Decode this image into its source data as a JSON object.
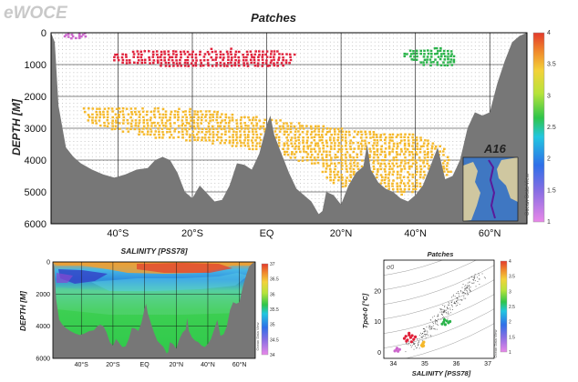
{
  "logo_text": "eWOCE",
  "colors": {
    "background": "#ffffff",
    "bathymetry": "#777777",
    "patch_red": "#e0213a",
    "patch_yellow": "#f5b82a",
    "patch_green": "#2ab34a",
    "patch_magenta": "#cc66cc",
    "sample_dots": "#444444"
  },
  "chart_data": [
    {
      "type": "scatter",
      "title": "Patches",
      "ylabel": "DEPTH [M]",
      "xlim": [
        -58,
        70
      ],
      "ylim": [
        6000,
        0
      ],
      "x_ticks": [
        -40,
        -20,
        0,
        20,
        40,
        60
      ],
      "x_tick_labels": [
        "40°S",
        "20°S",
        "EQ",
        "20°N",
        "40°N",
        "60°N"
      ],
      "y_ticks": [
        0,
        1000,
        2000,
        3000,
        4000,
        5000,
        6000
      ],
      "y_tick_labels": [
        "0",
        "1000",
        "2000",
        "3000",
        "4000",
        "5000",
        "6000"
      ],
      "colorbar": {
        "min": 1,
        "max": 4,
        "ticks": [
          "1",
          "1.5",
          "2",
          "2.5",
          "3",
          "3.5",
          "4"
        ]
      },
      "inset_label": "A16",
      "inset_caption": "Ocean Data View",
      "bathymetry_depth_m": [
        [
          -58,
          0
        ],
        [
          -57,
          300
        ],
        [
          -56,
          2300
        ],
        [
          -54,
          3600
        ],
        [
          -52,
          3900
        ],
        [
          -50,
          4100
        ],
        [
          -47,
          4300
        ],
        [
          -44,
          4450
        ],
        [
          -41,
          4550
        ],
        [
          -38,
          4450
        ],
        [
          -35,
          4300
        ],
        [
          -32,
          4250
        ],
        [
          -30,
          4000
        ],
        [
          -28,
          3900
        ],
        [
          -26,
          4000
        ],
        [
          -24,
          4400
        ],
        [
          -22,
          5000
        ],
        [
          -20,
          5200
        ],
        [
          -18,
          4800
        ],
        [
          -16,
          5050
        ],
        [
          -14,
          5300
        ],
        [
          -12,
          5250
        ],
        [
          -10,
          4800
        ],
        [
          -8,
          4100
        ],
        [
          -6,
          4150
        ],
        [
          -4,
          4300
        ],
        [
          -2,
          3800
        ],
        [
          0,
          2900
        ],
        [
          1,
          2600
        ],
        [
          2,
          3200
        ],
        [
          4,
          3800
        ],
        [
          6,
          4400
        ],
        [
          8,
          4900
        ],
        [
          10,
          5100
        ],
        [
          12,
          5300
        ],
        [
          14,
          5700
        ],
        [
          15,
          5600
        ],
        [
          16,
          5000
        ],
        [
          18,
          5100
        ],
        [
          20,
          5400
        ],
        [
          22,
          4800
        ],
        [
          24,
          4400
        ],
        [
          26,
          4200
        ],
        [
          27,
          3500
        ],
        [
          28,
          4300
        ],
        [
          30,
          4700
        ],
        [
          32,
          4900
        ],
        [
          34,
          5000
        ],
        [
          36,
          5200
        ],
        [
          38,
          5300
        ],
        [
          40,
          5100
        ],
        [
          42,
          4800
        ],
        [
          44,
          4200
        ],
        [
          46,
          3600
        ],
        [
          48,
          4600
        ],
        [
          50,
          4500
        ],
        [
          52,
          4000
        ],
        [
          54,
          3000
        ],
        [
          56,
          2500
        ],
        [
          58,
          2600
        ],
        [
          60,
          2500
        ],
        [
          62,
          1600
        ],
        [
          64,
          900
        ],
        [
          66,
          300
        ],
        [
          68,
          100
        ],
        [
          70,
          0
        ]
      ],
      "series": [
        {
          "color_value": 3.9,
          "region": [
            [
              -42,
              700
            ],
            [
              -35,
              550
            ],
            [
              -22,
              520
            ],
            [
              -10,
              500
            ],
            [
              0,
              520
            ],
            [
              8,
              650
            ],
            [
              6,
              1050
            ],
            [
              -8,
              1050
            ],
            [
              -22,
              1100
            ],
            [
              -35,
              1000
            ],
            [
              -42,
              900
            ]
          ]
        },
        {
          "color_value": 1.2,
          "region": [
            [
              -55,
              0
            ],
            [
              -48,
              0
            ],
            [
              -48,
              180
            ],
            [
              -55,
              180
            ]
          ]
        },
        {
          "color_value": 2.3,
          "region": [
            [
              37,
              500
            ],
            [
              50,
              480
            ],
            [
              51,
              1050
            ],
            [
              42,
              1050
            ],
            [
              37,
              750
            ]
          ]
        },
        {
          "color_value": 3.0,
          "region": [
            [
              -50,
              2350
            ],
            [
              -35,
              2300
            ],
            [
              -20,
              2400
            ],
            [
              -8,
              2550
            ],
            [
              0,
              2700
            ],
            [
              10,
              2850
            ],
            [
              20,
              3000
            ],
            [
              30,
              3100
            ],
            [
              40,
              3200
            ],
            [
              48,
              3600
            ],
            [
              50,
              4400
            ],
            [
              47,
              5000
            ],
            [
              35,
              5100
            ],
            [
              25,
              5050
            ],
            [
              17,
              4700
            ],
            [
              14,
              4200
            ],
            [
              5,
              3900
            ],
            [
              -2,
              3750
            ],
            [
              -10,
              3550
            ],
            [
              -20,
              3400
            ],
            [
              -30,
              3300
            ],
            [
              -40,
              3100
            ],
            [
              -48,
              2800
            ]
          ]
        }
      ]
    },
    {
      "type": "heatmap",
      "title": "SALINITY [PSS78]",
      "ylabel": "DEPTH [M]",
      "xlim": [
        -58,
        70
      ],
      "ylim": [
        6000,
        0
      ],
      "x_ticks": [
        -40,
        -20,
        0,
        20,
        40,
        60
      ],
      "x_tick_labels": [
        "40°S",
        "20°S",
        "EQ",
        "20°N",
        "40°N",
        "60°N"
      ],
      "y_ticks": [
        0,
        2000,
        4000,
        6000
      ],
      "y_tick_labels": [
        "0",
        "2000",
        "4000",
        "6000"
      ],
      "colorbar": {
        "min": 34,
        "max": 37,
        "ticks": [
          "34",
          "34.5",
          "35",
          "35.5",
          "36",
          "36.5",
          "37"
        ]
      },
      "inset_caption": "Ocean Data View"
    },
    {
      "type": "scatter",
      "title": "Patches",
      "xlabel": "SALINITY [PSS78]",
      "ylabel": "Tpot-0 [°C]",
      "xlim": [
        33.7,
        37.2
      ],
      "ylim": [
        -2,
        30
      ],
      "x_ticks": [
        34,
        35,
        36,
        37
      ],
      "x_tick_labels": [
        "34",
        "35",
        "36",
        "37"
      ],
      "y_ticks": [
        0,
        10,
        20
      ],
      "y_tick_labels": [
        "0",
        "10",
        "20"
      ],
      "contour_label": "σ0",
      "colorbar": {
        "min": 1,
        "max": 4,
        "ticks": [
          "1",
          "1.5",
          "2",
          "2.5",
          "3",
          "3.5",
          "4"
        ]
      },
      "inset_caption": "Ocean Data View",
      "series": [
        {
          "color_value": 3.9,
          "points": [
            [
              34.35,
              4.5
            ],
            [
              34.4,
              5.2
            ],
            [
              34.45,
              4.0
            ],
            [
              34.5,
              5.6
            ],
            [
              34.55,
              4.8
            ],
            [
              34.6,
              5.4
            ],
            [
              34.65,
              4.2
            ],
            [
              34.7,
              5.0
            ],
            [
              34.5,
              6.2
            ],
            [
              34.42,
              3.6
            ],
            [
              34.58,
              3.4
            ]
          ]
        },
        {
          "color_value": 2.3,
          "points": [
            [
              35.55,
              9.2
            ],
            [
              35.6,
              9.8
            ],
            [
              35.65,
              9.0
            ],
            [
              35.7,
              10.2
            ],
            [
              35.75,
              9.6
            ],
            [
              35.8,
              10.0
            ],
            [
              35.62,
              10.6
            ]
          ]
        },
        {
          "color_value": 3.0,
          "points": [
            [
              34.9,
              2.2
            ],
            [
              34.92,
              2.5
            ],
            [
              34.94,
              2.8
            ],
            [
              34.95,
              3.0
            ],
            [
              34.96,
              2.1
            ],
            [
              34.93,
              1.9
            ],
            [
              34.97,
              3.3
            ]
          ]
        },
        {
          "color_value": 1.2,
          "points": [
            [
              34.05,
              0.4
            ],
            [
              34.1,
              0.8
            ],
            [
              34.15,
              0.3
            ],
            [
              34.2,
              0.9
            ],
            [
              34.12,
              1.3
            ]
          ]
        }
      ]
    }
  ]
}
